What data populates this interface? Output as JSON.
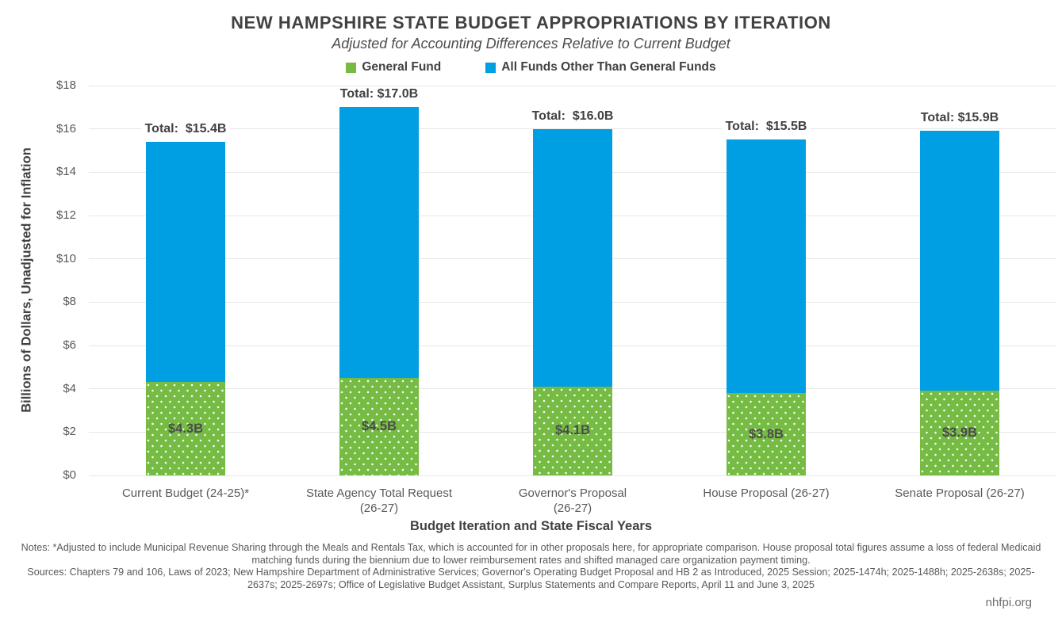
{
  "header": {
    "title": "NEW HAMPSHIRE STATE BUDGET APPROPRIATIONS BY ITERATION",
    "subtitle": "Adjusted for Accounting Differences Relative to Current Budget"
  },
  "legend": {
    "items": [
      {
        "label": "General Fund",
        "color": "#76BB43"
      },
      {
        "label": "All Funds Other Than General Funds",
        "color": "#009EE2"
      }
    ]
  },
  "chart_data": {
    "type": "bar",
    "stacked": true,
    "categories": [
      "Current Budget (24-25)*",
      "State Agency Total Request (26-27)",
      "Governor's Proposal (26-27)",
      "House Proposal (26-27)",
      "Senate Proposal (26-27)"
    ],
    "category_lines": [
      [
        "Current Budget (24-25)*"
      ],
      [
        "State Agency Total Request",
        "(26-27)"
      ],
      [
        "Governor's Proposal",
        "(26-27)"
      ],
      [
        "House Proposal (26-27)"
      ],
      [
        "Senate Proposal (26-27)"
      ]
    ],
    "series": [
      {
        "name": "General Fund",
        "color": "#76BB43",
        "values": [
          4.3,
          4.5,
          4.1,
          3.8,
          3.9
        ],
        "labels": [
          "$4.3B",
          "$4.5B",
          "$4.1B",
          "$3.8B",
          "$3.9B"
        ]
      },
      {
        "name": "All Funds Other Than General Funds",
        "color": "#009EE2",
        "values": [
          11.1,
          12.5,
          11.9,
          11.7,
          12.0
        ]
      }
    ],
    "totals": [
      15.4,
      17.0,
      16.0,
      15.5,
      15.9
    ],
    "total_labels": [
      "Total:  $15.4B",
      "Total: $17.0B",
      "Total:  $16.0B",
      "Total:  $15.5B",
      "Total: $15.9B"
    ],
    "xlabel": "Budget Iteration and State Fiscal Years",
    "ylabel": "Billions of Dollars, Unadjusted for Inflation",
    "ylim": [
      0,
      18
    ],
    "ytick_step": 2,
    "ytick_labels": [
      "$0",
      "$2",
      "$4",
      "$6",
      "$8",
      "$10",
      "$12",
      "$14",
      "$16",
      "$18"
    ],
    "grid": "horizontal",
    "legend_position": "top"
  },
  "footer": {
    "notes": "Notes: *Adjusted to include Municipal Revenue Sharing through the Meals and Rentals Tax, which is accounted for in other proposals here, for appropriate comparison. House proposal total figures assume a loss of federal Medicaid matching funds during the biennium due to lower reimbursement rates and shifted managed care organization payment timing.",
    "sources": "Sources: Chapters 79 and 106, Laws of 2023; New Hampshire Department of Administrative Services; Governor's Operating Budget Proposal and HB 2 as Introduced, 2025 Session; 2025-1474h; 2025-1488h; 2025-2638s; 2025-2637s; 2025-2697s; Office of Legislative Budget Assistant, Surplus Statements and Compare Reports, April 11 and June 3, 2025",
    "site": "nhfpi.org"
  }
}
